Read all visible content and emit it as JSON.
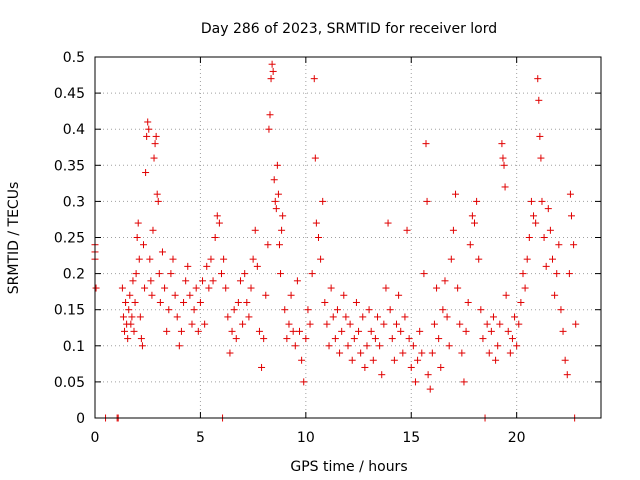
{
  "chart_data": {
    "type": "scatter",
    "title": "Day 286 of 2023, SRMTID for receiver lord",
    "xlabel": "GPS time / hours",
    "ylabel": "SRMTID / TECUs",
    "xlim": [
      0,
      24
    ],
    "ylim": [
      0,
      0.5
    ],
    "x_ticks": [
      0,
      5,
      10,
      15,
      20
    ],
    "x_tick_labels": [
      "0",
      "5",
      "10",
      "15",
      "20"
    ],
    "y_ticks": [
      0,
      0.05,
      0.1,
      0.15,
      0.2,
      0.25,
      0.3,
      0.35,
      0.4,
      0.45,
      0.5
    ],
    "y_tick_labels": [
      "0",
      "0.05",
      "0.1",
      "0.15",
      "0.2",
      "0.25",
      "0.3",
      "0.35",
      "0.4",
      "0.45",
      "0.5"
    ],
    "grid": true,
    "marker": "+",
    "marker_color": "#e00000",
    "series": [
      {
        "points": [
          [
            0.0,
            0.24
          ],
          [
            0.0,
            0.23
          ],
          [
            0.0,
            0.22
          ],
          [
            0.05,
            0.18
          ],
          [
            0.5,
            0.0
          ],
          [
            1.05,
            0.0
          ],
          [
            1.1,
            0.0
          ],
          [
            1.3,
            0.18
          ],
          [
            1.35,
            0.14
          ],
          [
            1.4,
            0.12
          ],
          [
            1.45,
            0.16
          ],
          [
            1.5,
            0.13
          ],
          [
            1.55,
            0.11
          ],
          [
            1.6,
            0.15
          ],
          [
            1.65,
            0.17
          ],
          [
            1.7,
            0.13
          ],
          [
            1.75,
            0.14
          ],
          [
            1.8,
            0.19
          ],
          [
            1.85,
            0.12
          ],
          [
            1.9,
            0.16
          ],
          [
            1.95,
            0.2
          ],
          [
            2.0,
            0.25
          ],
          [
            2.05,
            0.27
          ],
          [
            2.1,
            0.22
          ],
          [
            2.15,
            0.14
          ],
          [
            2.2,
            0.11
          ],
          [
            2.25,
            0.1
          ],
          [
            2.3,
            0.24
          ],
          [
            2.35,
            0.18
          ],
          [
            2.4,
            0.34
          ],
          [
            2.45,
            0.39
          ],
          [
            2.5,
            0.41
          ],
          [
            2.55,
            0.4
          ],
          [
            2.6,
            0.22
          ],
          [
            2.65,
            0.19
          ],
          [
            2.7,
            0.17
          ],
          [
            2.75,
            0.26
          ],
          [
            2.8,
            0.36
          ],
          [
            2.85,
            0.38
          ],
          [
            2.9,
            0.39
          ],
          [
            2.95,
            0.31
          ],
          [
            3.0,
            0.3
          ],
          [
            3.05,
            0.2
          ],
          [
            3.1,
            0.16
          ],
          [
            3.2,
            0.23
          ],
          [
            3.3,
            0.18
          ],
          [
            3.4,
            0.12
          ],
          [
            3.5,
            0.15
          ],
          [
            3.6,
            0.2
          ],
          [
            3.7,
            0.22
          ],
          [
            3.8,
            0.17
          ],
          [
            3.9,
            0.14
          ],
          [
            4.0,
            0.1
          ],
          [
            4.1,
            0.12
          ],
          [
            4.2,
            0.16
          ],
          [
            4.3,
            0.19
          ],
          [
            4.4,
            0.21
          ],
          [
            4.5,
            0.17
          ],
          [
            4.6,
            0.13
          ],
          [
            4.7,
            0.15
          ],
          [
            4.8,
            0.18
          ],
          [
            4.9,
            0.12
          ],
          [
            5.0,
            0.16
          ],
          [
            5.1,
            0.19
          ],
          [
            5.2,
            0.13
          ],
          [
            5.3,
            0.21
          ],
          [
            5.4,
            0.18
          ],
          [
            5.5,
            0.22
          ],
          [
            5.6,
            0.19
          ],
          [
            5.7,
            0.25
          ],
          [
            5.8,
            0.28
          ],
          [
            5.9,
            0.27
          ],
          [
            6.0,
            0.2
          ],
          [
            6.05,
            0.0
          ],
          [
            6.1,
            0.22
          ],
          [
            6.2,
            0.18
          ],
          [
            6.3,
            0.14
          ],
          [
            6.4,
            0.09
          ],
          [
            6.5,
            0.12
          ],
          [
            6.6,
            0.15
          ],
          [
            6.7,
            0.11
          ],
          [
            6.8,
            0.16
          ],
          [
            6.9,
            0.19
          ],
          [
            7.0,
            0.13
          ],
          [
            7.1,
            0.2
          ],
          [
            7.2,
            0.16
          ],
          [
            7.3,
            0.14
          ],
          [
            7.4,
            0.18
          ],
          [
            7.5,
            0.22
          ],
          [
            7.6,
            0.26
          ],
          [
            7.7,
            0.21
          ],
          [
            7.8,
            0.12
          ],
          [
            7.9,
            0.07
          ],
          [
            8.0,
            0.11
          ],
          [
            8.1,
            0.17
          ],
          [
            8.2,
            0.24
          ],
          [
            8.25,
            0.4
          ],
          [
            8.3,
            0.42
          ],
          [
            8.35,
            0.47
          ],
          [
            8.4,
            0.49
          ],
          [
            8.45,
            0.48
          ],
          [
            8.5,
            0.33
          ],
          [
            8.55,
            0.3
          ],
          [
            8.6,
            0.29
          ],
          [
            8.65,
            0.35
          ],
          [
            8.7,
            0.31
          ],
          [
            8.75,
            0.24
          ],
          [
            8.8,
            0.2
          ],
          [
            8.85,
            0.26
          ],
          [
            8.9,
            0.28
          ],
          [
            9.0,
            0.15
          ],
          [
            9.1,
            0.11
          ],
          [
            9.2,
            0.13
          ],
          [
            9.3,
            0.17
          ],
          [
            9.4,
            0.12
          ],
          [
            9.5,
            0.1
          ],
          [
            9.6,
            0.19
          ],
          [
            9.7,
            0.12
          ],
          [
            9.8,
            0.08
          ],
          [
            9.9,
            0.05
          ],
          [
            10.0,
            0.11
          ],
          [
            10.1,
            0.15
          ],
          [
            10.2,
            0.13
          ],
          [
            10.3,
            0.2
          ],
          [
            10.4,
            0.47
          ],
          [
            10.45,
            0.36
          ],
          [
            10.5,
            0.27
          ],
          [
            10.6,
            0.25
          ],
          [
            10.7,
            0.22
          ],
          [
            10.8,
            0.3
          ],
          [
            10.9,
            0.16
          ],
          [
            11.0,
            0.13
          ],
          [
            11.1,
            0.1
          ],
          [
            11.2,
            0.18
          ],
          [
            11.3,
            0.14
          ],
          [
            11.4,
            0.11
          ],
          [
            11.5,
            0.15
          ],
          [
            11.6,
            0.09
          ],
          [
            11.7,
            0.12
          ],
          [
            11.8,
            0.17
          ],
          [
            11.9,
            0.14
          ],
          [
            12.0,
            0.1
          ],
          [
            12.1,
            0.13
          ],
          [
            12.2,
            0.08
          ],
          [
            12.3,
            0.11
          ],
          [
            12.4,
            0.16
          ],
          [
            12.5,
            0.12
          ],
          [
            12.6,
            0.09
          ],
          [
            12.7,
            0.14
          ],
          [
            12.8,
            0.07
          ],
          [
            12.9,
            0.1
          ],
          [
            13.0,
            0.15
          ],
          [
            13.1,
            0.12
          ],
          [
            13.2,
            0.08
          ],
          [
            13.3,
            0.11
          ],
          [
            13.4,
            0.14
          ],
          [
            13.5,
            0.1
          ],
          [
            13.6,
            0.06
          ],
          [
            13.7,
            0.13
          ],
          [
            13.8,
            0.18
          ],
          [
            13.9,
            0.27
          ],
          [
            14.0,
            0.15
          ],
          [
            14.1,
            0.11
          ],
          [
            14.2,
            0.08
          ],
          [
            14.3,
            0.13
          ],
          [
            14.4,
            0.17
          ],
          [
            14.5,
            0.12
          ],
          [
            14.6,
            0.09
          ],
          [
            14.7,
            0.14
          ],
          [
            14.8,
            0.26
          ],
          [
            14.9,
            0.11
          ],
          [
            15.0,
            0.07
          ],
          [
            15.1,
            0.1
          ],
          [
            15.2,
            0.05
          ],
          [
            15.3,
            0.08
          ],
          [
            15.4,
            0.12
          ],
          [
            15.5,
            0.09
          ],
          [
            15.6,
            0.2
          ],
          [
            15.7,
            0.38
          ],
          [
            15.75,
            0.3
          ],
          [
            15.8,
            0.06
          ],
          [
            15.9,
            0.04
          ],
          [
            16.0,
            0.09
          ],
          [
            16.1,
            0.13
          ],
          [
            16.2,
            0.18
          ],
          [
            16.3,
            0.11
          ],
          [
            16.4,
            0.07
          ],
          [
            16.5,
            0.15
          ],
          [
            16.6,
            0.19
          ],
          [
            16.7,
            0.14
          ],
          [
            16.8,
            0.1
          ],
          [
            16.9,
            0.22
          ],
          [
            17.0,
            0.26
          ],
          [
            17.1,
            0.31
          ],
          [
            17.2,
            0.18
          ],
          [
            17.3,
            0.13
          ],
          [
            17.4,
            0.09
          ],
          [
            17.5,
            0.05
          ],
          [
            17.6,
            0.12
          ],
          [
            17.7,
            0.16
          ],
          [
            17.8,
            0.24
          ],
          [
            17.9,
            0.28
          ],
          [
            18.0,
            0.27
          ],
          [
            18.1,
            0.3
          ],
          [
            18.2,
            0.22
          ],
          [
            18.3,
            0.15
          ],
          [
            18.4,
            0.11
          ],
          [
            18.5,
            0.0
          ],
          [
            18.6,
            0.13
          ],
          [
            18.7,
            0.09
          ],
          [
            18.8,
            0.12
          ],
          [
            18.9,
            0.14
          ],
          [
            19.0,
            0.08
          ],
          [
            19.1,
            0.1
          ],
          [
            19.2,
            0.13
          ],
          [
            19.3,
            0.38
          ],
          [
            19.35,
            0.36
          ],
          [
            19.4,
            0.35
          ],
          [
            19.45,
            0.32
          ],
          [
            19.5,
            0.17
          ],
          [
            19.6,
            0.12
          ],
          [
            19.7,
            0.09
          ],
          [
            19.8,
            0.11
          ],
          [
            19.9,
            0.14
          ],
          [
            20.0,
            0.1
          ],
          [
            20.1,
            0.13
          ],
          [
            20.2,
            0.16
          ],
          [
            20.3,
            0.2
          ],
          [
            20.4,
            0.18
          ],
          [
            20.5,
            0.22
          ],
          [
            20.6,
            0.25
          ],
          [
            20.7,
            0.3
          ],
          [
            20.8,
            0.28
          ],
          [
            20.9,
            0.27
          ],
          [
            21.0,
            0.47
          ],
          [
            21.05,
            0.44
          ],
          [
            21.1,
            0.39
          ],
          [
            21.15,
            0.36
          ],
          [
            21.2,
            0.3
          ],
          [
            21.3,
            0.25
          ],
          [
            21.4,
            0.21
          ],
          [
            21.5,
            0.29
          ],
          [
            21.6,
            0.26
          ],
          [
            21.7,
            0.22
          ],
          [
            21.8,
            0.17
          ],
          [
            21.9,
            0.2
          ],
          [
            22.0,
            0.24
          ],
          [
            22.1,
            0.15
          ],
          [
            22.2,
            0.12
          ],
          [
            22.3,
            0.08
          ],
          [
            22.4,
            0.06
          ],
          [
            22.5,
            0.2
          ],
          [
            22.55,
            0.31
          ],
          [
            22.6,
            0.28
          ],
          [
            22.7,
            0.24
          ],
          [
            22.75,
            0.0
          ],
          [
            22.8,
            0.13
          ]
        ]
      }
    ]
  }
}
